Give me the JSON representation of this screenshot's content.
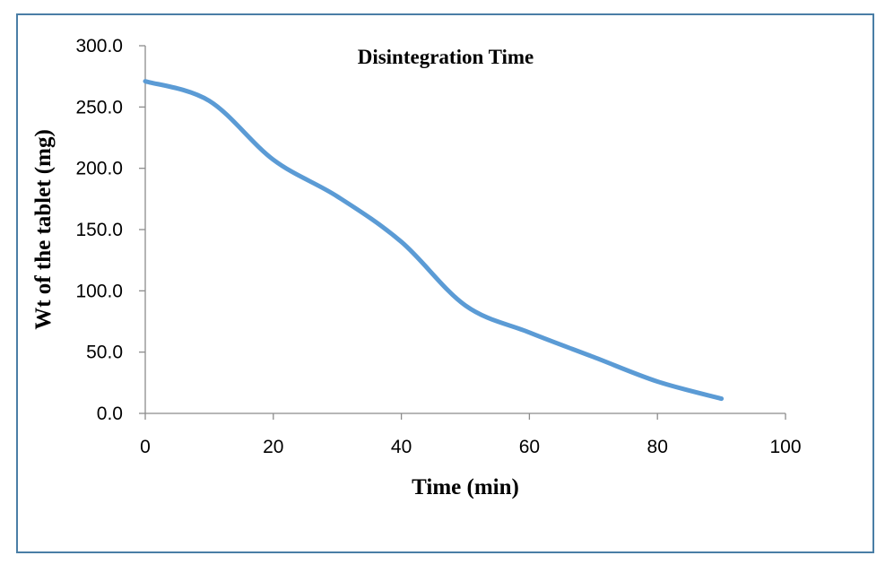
{
  "chart_data": {
    "type": "line",
    "title": "Disintegration Time",
    "xlabel": "Time (min)",
    "ylabel": "Wt of the tablet (mg)",
    "xlim": [
      0,
      100
    ],
    "ylim": [
      0,
      300
    ],
    "x_ticks": [
      "0",
      "20",
      "40",
      "60",
      "80",
      "100"
    ],
    "y_ticks": [
      "0.0",
      "50.0",
      "100.0",
      "150.0",
      "200.0",
      "250.0",
      "300.0"
    ],
    "grid": false,
    "legend": "none",
    "series": [
      {
        "color": "#5b9bd5",
        "x": [
          0,
          10,
          20,
          30,
          40,
          50,
          60,
          70,
          80,
          90
        ],
        "y": [
          271,
          255,
          207,
          177,
          140,
          88,
          66,
          46,
          26,
          12
        ]
      }
    ]
  }
}
